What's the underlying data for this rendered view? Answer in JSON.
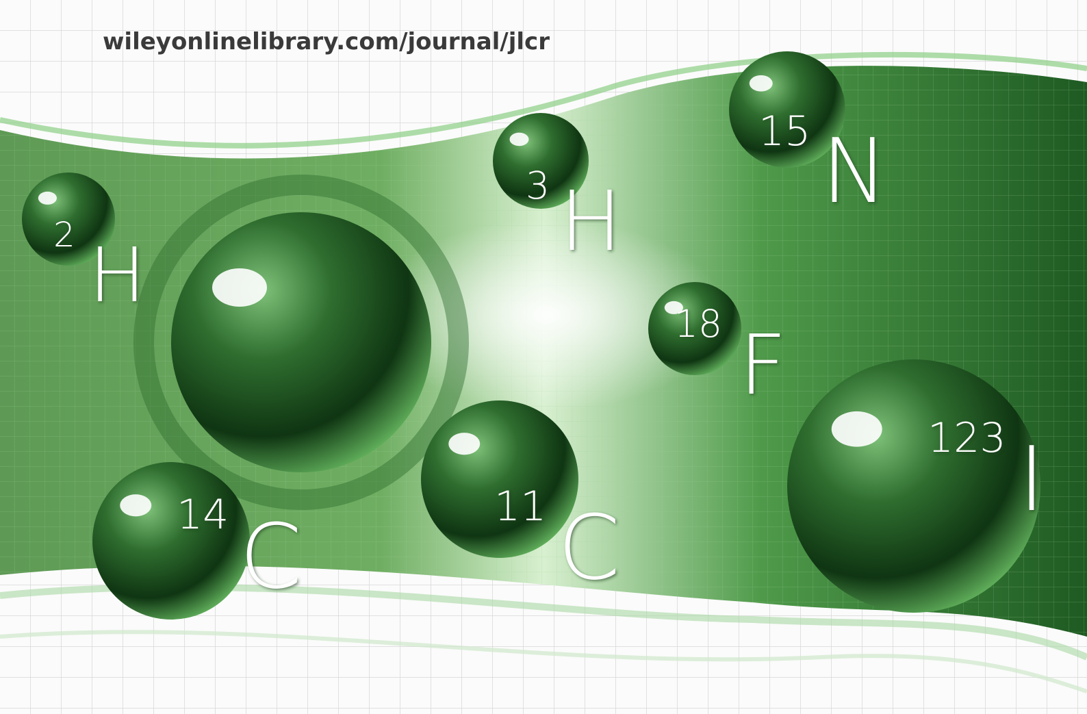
{
  "url": "wileyonlinelibrary.com/journal/jlcr",
  "isotopes": [
    {
      "mass": "2",
      "symbol": "H"
    },
    {
      "mass": "3",
      "symbol": "H"
    },
    {
      "mass": "15",
      "symbol": "N"
    },
    {
      "mass": "18",
      "symbol": "F"
    },
    {
      "mass": "14",
      "symbol": "C"
    },
    {
      "mass": "11",
      "symbol": "C"
    },
    {
      "mass": "123",
      "symbol": "I"
    }
  ]
}
